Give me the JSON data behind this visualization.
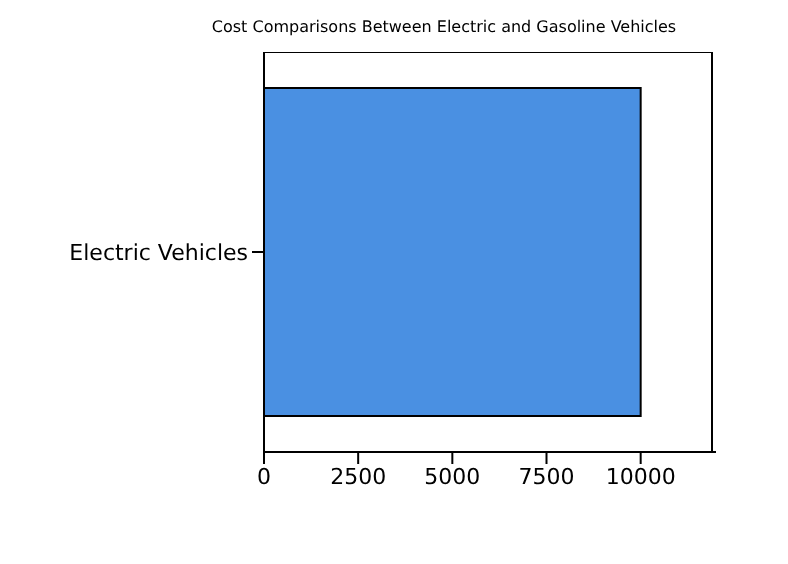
{
  "chart_data": {
    "type": "bar",
    "orientation": "horizontal",
    "title": "Cost Comparisons Between Electric and Gasoline Vehicles",
    "categories": [
      "Electric Vehicles"
    ],
    "values": [
      10000
    ],
    "color": "#4a90e2",
    "xlim": [
      0,
      12000
    ],
    "xticks": [
      0,
      2500,
      5000,
      7500,
      10000
    ],
    "grid": false
  }
}
